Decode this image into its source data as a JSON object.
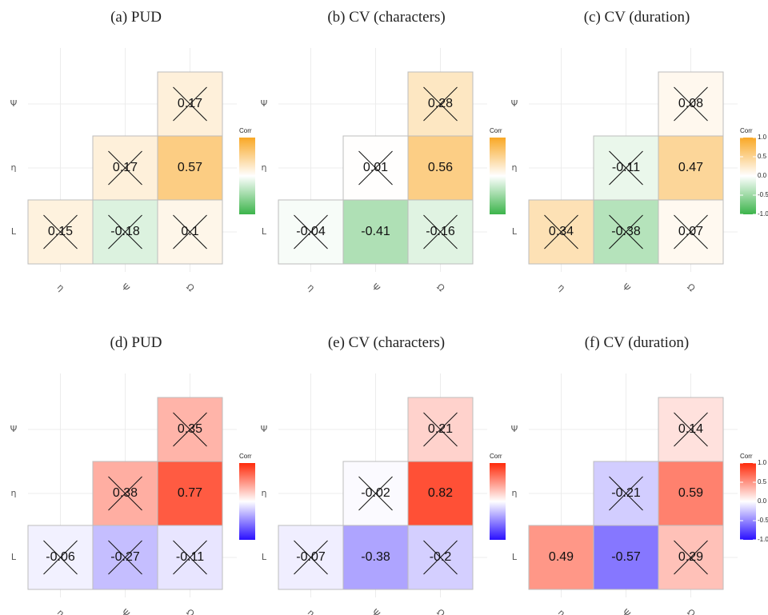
{
  "chart_data": [
    {
      "type": "heatmap",
      "title": "(a) PUD",
      "x_categories": [
        "η",
        "Ψ",
        "Ω"
      ],
      "y_categories": [
        "L",
        "η",
        "Ψ"
      ],
      "values": [
        [
          0.15,
          -0.18,
          0.1
        ],
        [
          null,
          0.17,
          0.57
        ],
        [
          null,
          null,
          0.17
        ]
      ],
      "insignificant": [
        [
          true,
          true,
          true
        ],
        [
          false,
          true,
          false
        ],
        [
          false,
          false,
          true
        ]
      ],
      "legend_title": "Corr",
      "clim": [
        -1,
        1
      ],
      "colors": {
        "low": "#3cb44b",
        "mid": "#ffffff",
        "high": "#f9a825"
      }
    },
    {
      "type": "heatmap",
      "title": "(b) CV (characters)",
      "x_categories": [
        "η",
        "Ψ",
        "Ω"
      ],
      "y_categories": [
        "L",
        "η",
        "Ψ"
      ],
      "values": [
        [
          -0.04,
          -0.41,
          -0.16
        ],
        [
          null,
          0.01,
          0.56
        ],
        [
          null,
          null,
          0.28
        ]
      ],
      "insignificant": [
        [
          true,
          false,
          true
        ],
        [
          false,
          true,
          false
        ],
        [
          false,
          false,
          true
        ]
      ],
      "legend_title": "Corr",
      "clim": [
        -1,
        1
      ],
      "colors": {
        "low": "#3cb44b",
        "mid": "#ffffff",
        "high": "#f9a825"
      }
    },
    {
      "type": "heatmap",
      "title": "(c) CV (duration)",
      "x_categories": [
        "η",
        "Ψ",
        "Ω"
      ],
      "y_categories": [
        "L",
        "η",
        "Ψ"
      ],
      "values": [
        [
          0.34,
          -0.38,
          0.07
        ],
        [
          null,
          -0.11,
          0.47
        ],
        [
          null,
          null,
          0.08
        ]
      ],
      "insignificant": [
        [
          true,
          true,
          true
        ],
        [
          false,
          true,
          false
        ],
        [
          false,
          false,
          true
        ]
      ],
      "legend_title": "Corr",
      "clim": [
        -1,
        1
      ],
      "colors": {
        "low": "#3cb44b",
        "mid": "#ffffff",
        "high": "#f9a825"
      },
      "ticks": [
        {
          "value": 1,
          "label": "1.0"
        },
        {
          "value": 0.5,
          "label": "0.5"
        },
        {
          "value": 0,
          "label": "0.0"
        },
        {
          "value": -0.5,
          "label": "-0.5"
        },
        {
          "value": -1,
          "label": "-1.0"
        }
      ]
    },
    {
      "type": "heatmap",
      "title": "(d) PUD",
      "x_categories": [
        "η",
        "Ψ",
        "Ω"
      ],
      "y_categories": [
        "L",
        "η",
        "Ψ"
      ],
      "values": [
        [
          -0.06,
          -0.27,
          -0.11
        ],
        [
          null,
          0.38,
          0.77
        ],
        [
          null,
          null,
          0.35
        ]
      ],
      "insignificant": [
        [
          true,
          true,
          true
        ],
        [
          false,
          true,
          false
        ],
        [
          false,
          false,
          true
        ]
      ],
      "legend_title": "Corr",
      "clim": [
        -1,
        1
      ],
      "colors": {
        "low": "#2a10ff",
        "mid": "#ffffff",
        "high": "#ff2a0a"
      }
    },
    {
      "type": "heatmap",
      "title": "(e) CV (characters)",
      "x_categories": [
        "η",
        "Ψ",
        "Ω"
      ],
      "y_categories": [
        "L",
        "η",
        "Ψ"
      ],
      "values": [
        [
          -0.07,
          -0.38,
          -0.2
        ],
        [
          null,
          -0.02,
          0.82
        ],
        [
          null,
          null,
          0.21
        ]
      ],
      "insignificant": [
        [
          true,
          false,
          true
        ],
        [
          false,
          true,
          false
        ],
        [
          false,
          false,
          true
        ]
      ],
      "legend_title": "Corr",
      "clim": [
        -1,
        1
      ],
      "colors": {
        "low": "#2a10ff",
        "mid": "#ffffff",
        "high": "#ff2a0a"
      }
    },
    {
      "type": "heatmap",
      "title": "(f) CV (duration)",
      "x_categories": [
        "η",
        "Ψ",
        "Ω"
      ],
      "y_categories": [
        "L",
        "η",
        "Ψ"
      ],
      "values": [
        [
          0.49,
          -0.57,
          0.29
        ],
        [
          null,
          -0.21,
          0.59
        ],
        [
          null,
          null,
          0.14
        ]
      ],
      "insignificant": [
        [
          false,
          false,
          true
        ],
        [
          false,
          true,
          false
        ],
        [
          false,
          false,
          true
        ]
      ],
      "legend_title": "Corr",
      "clim": [
        -1,
        1
      ],
      "colors": {
        "low": "#2a10ff",
        "mid": "#ffffff",
        "high": "#ff2a0a"
      },
      "ticks": [
        {
          "value": 1,
          "label": "1.0"
        },
        {
          "value": 0.5,
          "label": "0.5"
        },
        {
          "value": 0,
          "label": "0.0"
        },
        {
          "value": -0.5,
          "label": "-0.5"
        },
        {
          "value": -1,
          "label": "-1.0"
        }
      ]
    }
  ]
}
